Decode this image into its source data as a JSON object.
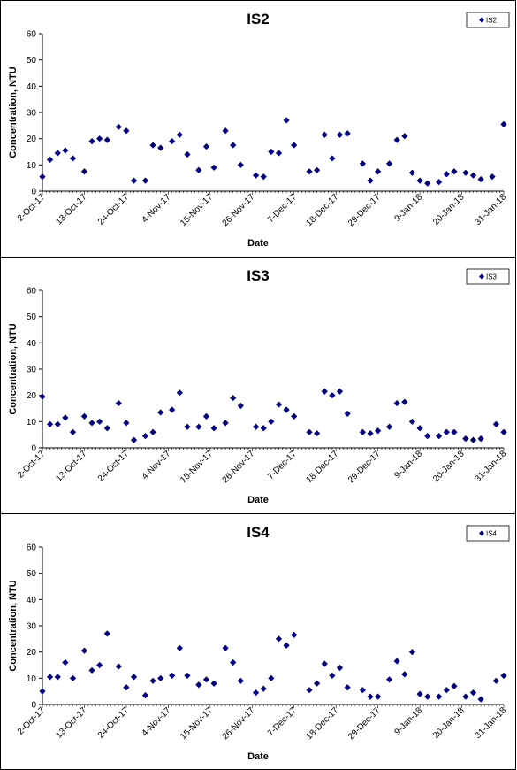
{
  "chart_data": [
    {
      "type": "scatter",
      "title": "IS2",
      "xlabel": "Date",
      "ylabel": "Concentration, NTU",
      "ylim": [
        0,
        60
      ],
      "yticks": [
        0,
        10,
        20,
        30,
        40,
        50,
        60
      ],
      "xlim": [
        "2017-10-02",
        "2018-01-31"
      ],
      "xtick_labels": [
        "2-Oct-17",
        "13-Oct-17",
        "24-Oct-17",
        "4-Nov-17",
        "15-Nov-17",
        "26-Nov-17",
        "7-Dec-17",
        "18-Dec-17",
        "29-Dec-17",
        "9-Jan-18",
        "20-Jan-18",
        "31-Jan-18"
      ],
      "legend_position": "top-right",
      "marker_color": "#00007f",
      "series": [
        {
          "name": "IS2",
          "points": [
            [
              "2017-10-02",
              5.5
            ],
            [
              "2017-10-04",
              12
            ],
            [
              "2017-10-06",
              14.5
            ],
            [
              "2017-10-08",
              15.5
            ],
            [
              "2017-10-10",
              12.5
            ],
            [
              "2017-10-13",
              7.5
            ],
            [
              "2017-10-15",
              19
            ],
            [
              "2017-10-17",
              20
            ],
            [
              "2017-10-19",
              19.5
            ],
            [
              "2017-10-22",
              24.5
            ],
            [
              "2017-10-24",
              23
            ],
            [
              "2017-10-26",
              4
            ],
            [
              "2017-10-29",
              4
            ],
            [
              "2017-10-31",
              17.5
            ],
            [
              "2017-11-02",
              16.5
            ],
            [
              "2017-11-05",
              19
            ],
            [
              "2017-11-07",
              21.5
            ],
            [
              "2017-11-09",
              14
            ],
            [
              "2017-11-12",
              8
            ],
            [
              "2017-11-14",
              17
            ],
            [
              "2017-11-16",
              9
            ],
            [
              "2017-11-19",
              23
            ],
            [
              "2017-11-21",
              17.5
            ],
            [
              "2017-11-23",
              10
            ],
            [
              "2017-11-27",
              6
            ],
            [
              "2017-11-29",
              5.5
            ],
            [
              "2017-12-01",
              15
            ],
            [
              "2017-12-03",
              14.5
            ],
            [
              "2017-12-05",
              27
            ],
            [
              "2017-12-07",
              17.5
            ],
            [
              "2017-12-11",
              7.5
            ],
            [
              "2017-12-13",
              8
            ],
            [
              "2017-12-15",
              21.5
            ],
            [
              "2017-12-17",
              12.5
            ],
            [
              "2017-12-19",
              21.5
            ],
            [
              "2017-12-21",
              22
            ],
            [
              "2017-12-25",
              10.5
            ],
            [
              "2017-12-27",
              4
            ],
            [
              "2017-12-29",
              7.5
            ],
            [
              "2018-01-01",
              10.5
            ],
            [
              "2018-01-03",
              19.5
            ],
            [
              "2018-01-05",
              21
            ],
            [
              "2018-01-07",
              7
            ],
            [
              "2018-01-09",
              4
            ],
            [
              "2018-01-11",
              3
            ],
            [
              "2018-01-14",
              3.5
            ],
            [
              "2018-01-16",
              6.5
            ],
            [
              "2018-01-18",
              7.5
            ],
            [
              "2018-01-21",
              7
            ],
            [
              "2018-01-23",
              6
            ],
            [
              "2018-01-25",
              4.5
            ],
            [
              "2018-01-28",
              5.5
            ],
            [
              "2018-01-31",
              25.5
            ]
          ]
        }
      ]
    },
    {
      "type": "scatter",
      "title": "IS3",
      "xlabel": "Date",
      "ylabel": "Concentration, NTU",
      "ylim": [
        0,
        60
      ],
      "yticks": [
        0,
        10,
        20,
        30,
        40,
        50,
        60
      ],
      "xlim": [
        "2017-10-02",
        "2018-01-31"
      ],
      "xtick_labels": [
        "2-Oct-17",
        "13-Oct-17",
        "24-Oct-17",
        "4-Nov-17",
        "15-Nov-17",
        "26-Nov-17",
        "7-Dec-17",
        "18-Dec-17",
        "29-Dec-17",
        "9-Jan-18",
        "20-Jan-18",
        "31-Jan-18"
      ],
      "legend_position": "top-right",
      "marker_color": "#00007f",
      "series": [
        {
          "name": "IS3",
          "points": [
            [
              "2017-10-02",
              19.5
            ],
            [
              "2017-10-04",
              9
            ],
            [
              "2017-10-06",
              9
            ],
            [
              "2017-10-08",
              11.5
            ],
            [
              "2017-10-10",
              6
            ],
            [
              "2017-10-13",
              12
            ],
            [
              "2017-10-15",
              9.5
            ],
            [
              "2017-10-17",
              10
            ],
            [
              "2017-10-19",
              7.5
            ],
            [
              "2017-10-22",
              17
            ],
            [
              "2017-10-24",
              9.5
            ],
            [
              "2017-10-26",
              3
            ],
            [
              "2017-10-29",
              4.5
            ],
            [
              "2017-10-31",
              6
            ],
            [
              "2017-11-02",
              13.5
            ],
            [
              "2017-11-05",
              14.5
            ],
            [
              "2017-11-07",
              21
            ],
            [
              "2017-11-09",
              8
            ],
            [
              "2017-11-12",
              8
            ],
            [
              "2017-11-14",
              12
            ],
            [
              "2017-11-16",
              7.5
            ],
            [
              "2017-11-19",
              9.5
            ],
            [
              "2017-11-21",
              19
            ],
            [
              "2017-11-23",
              16
            ],
            [
              "2017-11-27",
              8
            ],
            [
              "2017-11-29",
              7.5
            ],
            [
              "2017-12-01",
              10
            ],
            [
              "2017-12-03",
              16.5
            ],
            [
              "2017-12-05",
              14.5
            ],
            [
              "2017-12-07",
              12
            ],
            [
              "2017-12-11",
              6
            ],
            [
              "2017-12-13",
              5.5
            ],
            [
              "2017-12-15",
              21.5
            ],
            [
              "2017-12-17",
              20
            ],
            [
              "2017-12-19",
              21.5
            ],
            [
              "2017-12-21",
              13
            ],
            [
              "2017-12-25",
              6
            ],
            [
              "2017-12-27",
              5.5
            ],
            [
              "2017-12-29",
              6.5
            ],
            [
              "2018-01-01",
              8
            ],
            [
              "2018-01-03",
              17
            ],
            [
              "2018-01-05",
              17.5
            ],
            [
              "2018-01-07",
              10
            ],
            [
              "2018-01-09",
              7.5
            ],
            [
              "2018-01-11",
              4.5
            ],
            [
              "2018-01-14",
              4.5
            ],
            [
              "2018-01-16",
              6
            ],
            [
              "2018-01-18",
              6
            ],
            [
              "2018-01-21",
              3.5
            ],
            [
              "2018-01-23",
              3
            ],
            [
              "2018-01-25",
              3.5
            ],
            [
              "2018-01-29",
              9
            ],
            [
              "2018-01-31",
              6
            ]
          ]
        }
      ]
    },
    {
      "type": "scatter",
      "title": "IS4",
      "xlabel": "Date",
      "ylabel": "Concentration, NTU",
      "ylim": [
        0,
        60
      ],
      "yticks": [
        0,
        10,
        20,
        30,
        40,
        50,
        60
      ],
      "xlim": [
        "2017-10-02",
        "2018-01-31"
      ],
      "xtick_labels": [
        "2-Oct-17",
        "13-Oct-17",
        "24-Oct-17",
        "4-Nov-17",
        "15-Nov-17",
        "26-Nov-17",
        "7-Dec-17",
        "18-Dec-17",
        "29-Dec-17",
        "9-Jan-18",
        "20-Jan-18",
        "31-Jan-18"
      ],
      "legend_position": "top-right",
      "marker_color": "#00007f",
      "series": [
        {
          "name": "IS4",
          "points": [
            [
              "2017-10-02",
              5
            ],
            [
              "2017-10-04",
              10.5
            ],
            [
              "2017-10-06",
              10.5
            ],
            [
              "2017-10-08",
              16
            ],
            [
              "2017-10-10",
              10
            ],
            [
              "2017-10-13",
              20.5
            ],
            [
              "2017-10-15",
              13
            ],
            [
              "2017-10-17",
              15
            ],
            [
              "2017-10-19",
              27
            ],
            [
              "2017-10-22",
              14.5
            ],
            [
              "2017-10-24",
              6.5
            ],
            [
              "2017-10-26",
              10.5
            ],
            [
              "2017-10-29",
              3.5
            ],
            [
              "2017-10-31",
              9
            ],
            [
              "2017-11-02",
              10
            ],
            [
              "2017-11-05",
              11
            ],
            [
              "2017-11-07",
              21.5
            ],
            [
              "2017-11-09",
              11
            ],
            [
              "2017-11-12",
              7.5
            ],
            [
              "2017-11-14",
              9.5
            ],
            [
              "2017-11-16",
              8
            ],
            [
              "2017-11-19",
              21.5
            ],
            [
              "2017-11-21",
              16
            ],
            [
              "2017-11-23",
              9
            ],
            [
              "2017-11-27",
              4.5
            ],
            [
              "2017-11-29",
              6
            ],
            [
              "2017-12-01",
              10
            ],
            [
              "2017-12-03",
              25
            ],
            [
              "2017-12-05",
              22.5
            ],
            [
              "2017-12-07",
              26.5
            ],
            [
              "2017-12-11",
              5.5
            ],
            [
              "2017-12-13",
              8
            ],
            [
              "2017-12-15",
              15.5
            ],
            [
              "2017-12-17",
              11
            ],
            [
              "2017-12-19",
              14
            ],
            [
              "2017-12-21",
              6.5
            ],
            [
              "2017-12-25",
              5.5
            ],
            [
              "2017-12-27",
              3
            ],
            [
              "2017-12-29",
              3
            ],
            [
              "2018-01-01",
              9.5
            ],
            [
              "2018-01-03",
              16.5
            ],
            [
              "2018-01-05",
              11.5
            ],
            [
              "2018-01-07",
              20
            ],
            [
              "2018-01-09",
              4
            ],
            [
              "2018-01-11",
              3
            ],
            [
              "2018-01-14",
              3
            ],
            [
              "2018-01-16",
              5.5
            ],
            [
              "2018-01-18",
              7
            ],
            [
              "2018-01-21",
              3
            ],
            [
              "2018-01-23",
              4.5
            ],
            [
              "2018-01-25",
              2
            ],
            [
              "2018-01-29",
              9
            ],
            [
              "2018-01-31",
              11
            ]
          ]
        }
      ]
    }
  ]
}
